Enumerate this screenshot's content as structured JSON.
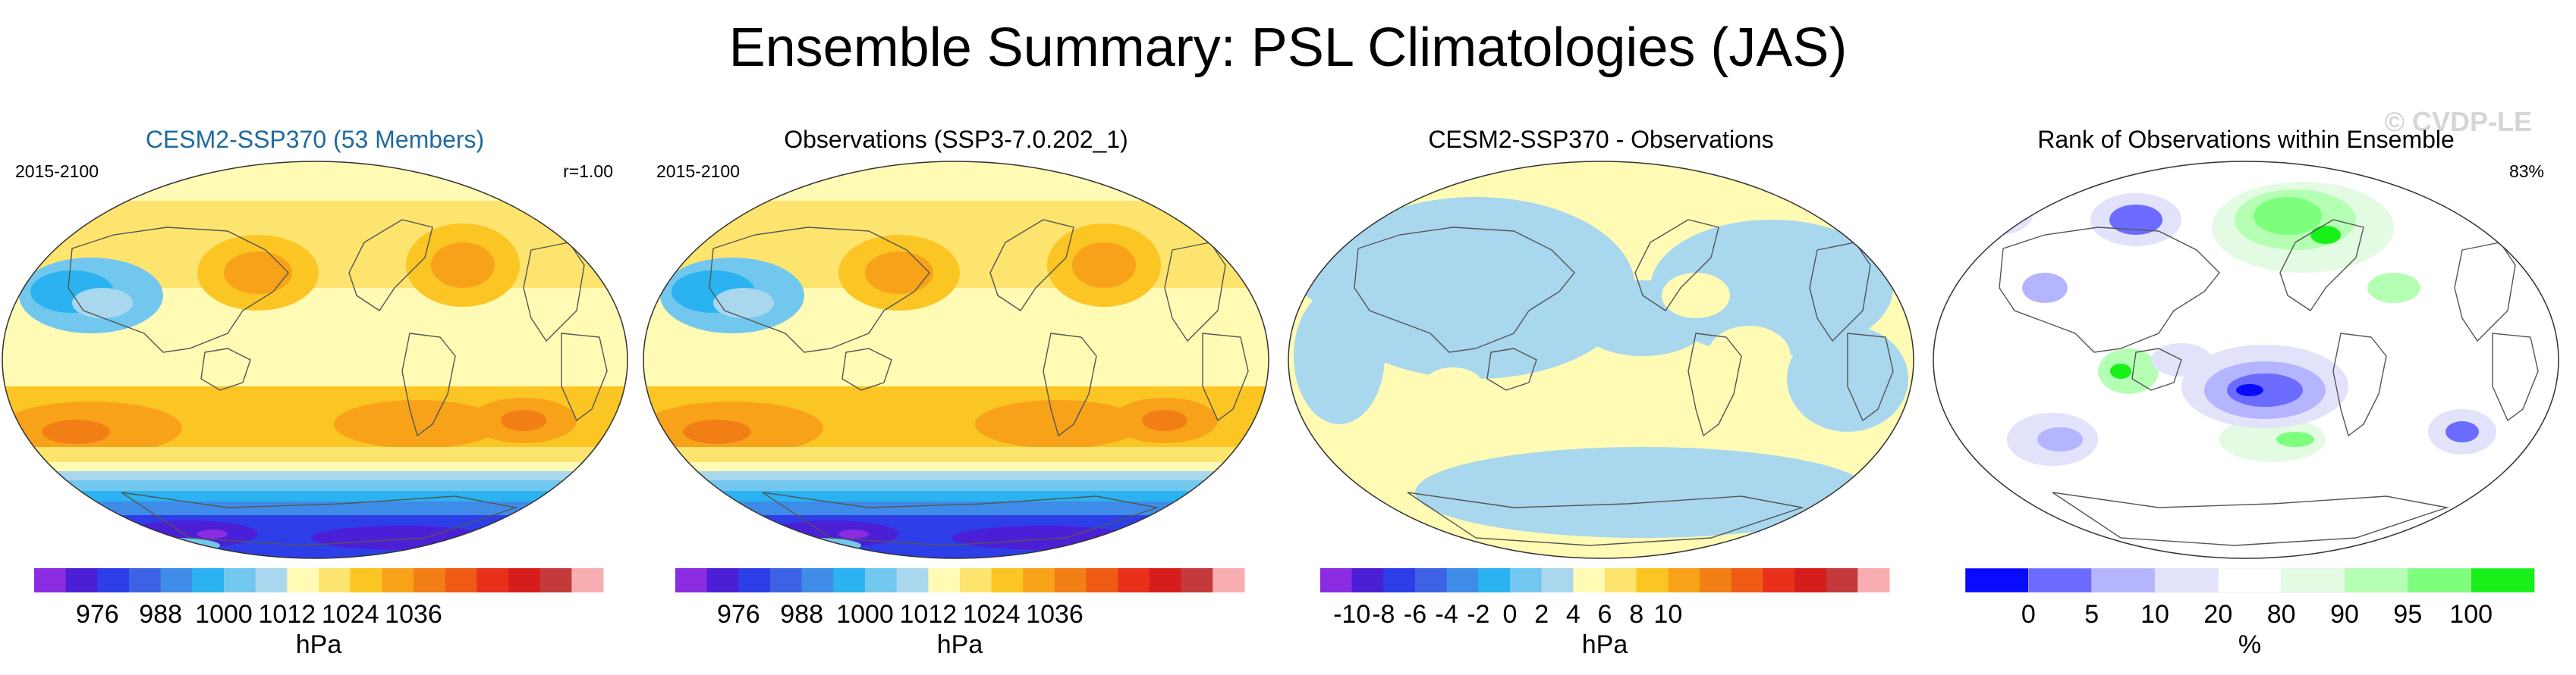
{
  "title": "Ensemble Summary: PSL Climatologies (JAS)",
  "watermark": "© CVDP-LE",
  "chart_data": [
    {
      "type": "heatmap",
      "title": "CESM2-SSP370 (53 Members)",
      "period": "2015-2100",
      "pattern_corr": "r=1.00",
      "title_color": "#1f6aa0",
      "map_style": "psl",
      "colorbar": {
        "colors": [
          "#8b2be2",
          "#4b1fd6",
          "#2d3ee8",
          "#3e62e6",
          "#3f8ce8",
          "#2ab3f0",
          "#72c7ee",
          "#a8d7ee",
          "#fffbb5",
          "#fde46e",
          "#fbc524",
          "#f8a21a",
          "#f27f16",
          "#ef5a14",
          "#e8301a",
          "#d51e1c",
          "#c43a3a",
          "#f8aeb0"
        ],
        "tick_labels": [
          "976",
          "988",
          "1000",
          "1012",
          "1024",
          "1036"
        ],
        "tick_positions": [
          2,
          4,
          6,
          8,
          10,
          12
        ],
        "units": "hPa"
      }
    },
    {
      "type": "heatmap",
      "title": "Observations (SSP3-7.0.202_1)",
      "period": "2015-2100",
      "pattern_corr": "",
      "title_color": "#000000",
      "map_style": "psl",
      "colorbar": {
        "colors": [
          "#8b2be2",
          "#4b1fd6",
          "#2d3ee8",
          "#3e62e6",
          "#3f8ce8",
          "#2ab3f0",
          "#72c7ee",
          "#a8d7ee",
          "#fffbb5",
          "#fde46e",
          "#fbc524",
          "#f8a21a",
          "#f27f16",
          "#ef5a14",
          "#e8301a",
          "#d51e1c",
          "#c43a3a",
          "#f8aeb0"
        ],
        "tick_labels": [
          "976",
          "988",
          "1000",
          "1012",
          "1024",
          "1036"
        ],
        "tick_positions": [
          2,
          4,
          6,
          8,
          10,
          12
        ],
        "units": "hPa"
      }
    },
    {
      "type": "heatmap",
      "title": "CESM2-SSP370 - Observations",
      "period": "",
      "pattern_corr": "",
      "title_color": "#000000",
      "map_style": "diff",
      "colorbar": {
        "colors": [
          "#8b2be2",
          "#4b1fd6",
          "#2d3ee8",
          "#3e62e6",
          "#3f8ce8",
          "#2ab3f0",
          "#72c7ee",
          "#a8d7ee",
          "#fffbb5",
          "#fde46e",
          "#fbc524",
          "#f8a21a",
          "#f27f16",
          "#ef5a14",
          "#e8301a",
          "#d51e1c",
          "#c43a3a",
          "#f8aeb0"
        ],
        "tick_labels": [
          "-10",
          "-8",
          "-6",
          "-4",
          "-2",
          "0",
          "2",
          "4",
          "6",
          "8",
          "10"
        ],
        "tick_positions": [
          1,
          2,
          3,
          4,
          5,
          6,
          7,
          8,
          9,
          10,
          11
        ],
        "units": "hPa"
      }
    },
    {
      "type": "heatmap",
      "title": "Rank of Observations within Ensemble",
      "period": "",
      "pattern_corr": "83%",
      "title_color": "#000000",
      "map_style": "rank",
      "colorbar": {
        "colors": [
          "#0a0aff",
          "#6b6bff",
          "#b4b4ff",
          "#e2e2fb",
          "#ffffff",
          "#e2fbe2",
          "#b4ffb4",
          "#7dff7d",
          "#19f019"
        ],
        "tick_labels": [
          "0",
          "5",
          "10",
          "20",
          "80",
          "90",
          "95",
          "100"
        ],
        "tick_positions": [
          1,
          2,
          3,
          4,
          5,
          6,
          7,
          8
        ],
        "units": "%"
      }
    }
  ]
}
